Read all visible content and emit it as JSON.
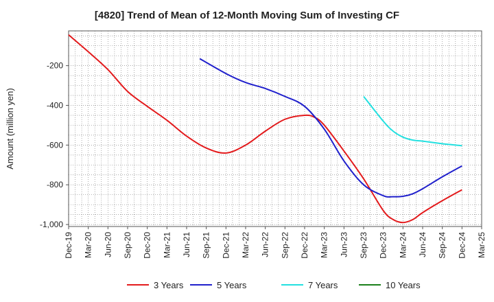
{
  "chart_data": {
    "type": "line",
    "title": "[4820]  Trend of Mean of 12-Month Moving Sum of Investing CF",
    "xlabel": "",
    "ylabel": "Amount (million yen)",
    "ylim": [
      -1010,
      -25
    ],
    "yticks": [
      -1000,
      -800,
      -600,
      -400,
      -200
    ],
    "ytick_labels": [
      "-1,000",
      "-800",
      "-600",
      "-400",
      "-200"
    ],
    "categories": [
      "Dec-19",
      "Mar-20",
      "Jun-20",
      "Sep-20",
      "Dec-20",
      "Mar-21",
      "Jun-21",
      "Sep-21",
      "Dec-21",
      "Mar-22",
      "Jun-22",
      "Sep-22",
      "Dec-22",
      "Mar-23",
      "Jun-23",
      "Sep-23",
      "Dec-23",
      "Mar-24",
      "Jun-24",
      "Sep-24",
      "Dec-24",
      "Mar-25"
    ],
    "grid": true,
    "legend_position": "bottom",
    "series": [
      {
        "name": "3 Years",
        "color": "#e31a1c",
        "x": [
          0,
          1,
          2,
          3,
          4,
          5,
          6,
          7,
          8,
          9,
          10,
          11,
          12,
          12.5,
          13,
          14,
          15,
          16,
          16.5,
          17,
          17.5,
          18,
          19,
          20
        ],
        "values": [
          -45,
          -130,
          -220,
          -330,
          -405,
          -475,
          -555,
          -615,
          -640,
          -600,
          -530,
          -470,
          -450,
          -460,
          -500,
          -630,
          -770,
          -930,
          -975,
          -990,
          -975,
          -940,
          -880,
          -825
        ]
      },
      {
        "name": "5 Years",
        "color": "#1f1fcc",
        "x": [
          6.67,
          8,
          9,
          10,
          11,
          12,
          13,
          14,
          15,
          16,
          16.5,
          17,
          17.5,
          18,
          19,
          20
        ],
        "values": [
          -165,
          -240,
          -285,
          -315,
          -355,
          -405,
          -520,
          -680,
          -800,
          -855,
          -860,
          -858,
          -845,
          -820,
          -760,
          -705
        ]
      },
      {
        "name": "7 Years",
        "color": "#22e0e0",
        "x": [
          15,
          16,
          16.5,
          17,
          17.5,
          18,
          19,
          20
        ],
        "values": [
          -355,
          -480,
          -530,
          -560,
          -575,
          -580,
          -593,
          -603
        ]
      },
      {
        "name": "10 Years",
        "color": "#1a7f1a",
        "x": [],
        "values": []
      }
    ]
  }
}
